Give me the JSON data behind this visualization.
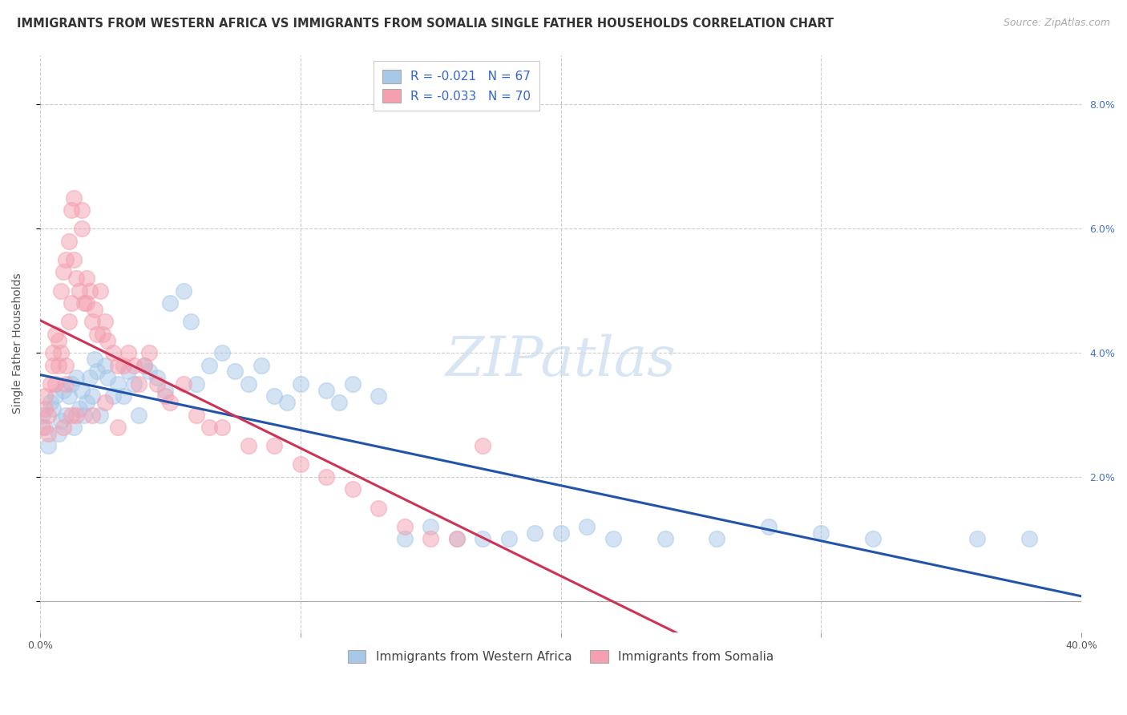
{
  "title": "IMMIGRANTS FROM WESTERN AFRICA VS IMMIGRANTS FROM SOMALIA SINGLE FATHER HOUSEHOLDS CORRELATION CHART",
  "source": "Source: ZipAtlas.com",
  "ylabel": "Single Father Households",
  "xlim": [
    0.0,
    0.4
  ],
  "ylim": [
    -0.005,
    0.088
  ],
  "yticks": [
    0.0,
    0.02,
    0.04,
    0.06,
    0.08
  ],
  "ytick_labels": [
    "",
    "2.0%",
    "4.0%",
    "6.0%",
    "8.0%"
  ],
  "xticks": [
    0.0,
    0.1,
    0.2,
    0.3,
    0.4
  ],
  "xtick_labels": [
    "0.0%",
    "",
    "",
    "",
    "40.0%"
  ],
  "legend_blue_r": "R = -0.021",
  "legend_blue_n": "N = 67",
  "legend_pink_r": "R = -0.033",
  "legend_pink_n": "N = 70",
  "legend_blue_label": "Immigrants from Western Africa",
  "legend_pink_label": "Immigrants from Somalia",
  "blue_color": "#a8c8e8",
  "pink_color": "#f4a0b0",
  "trend_color_blue": "#2255aa",
  "trend_color_pink": "#cc3355",
  "watermark": "ZIPatlas",
  "blue_x": [
    0.001,
    0.002,
    0.003,
    0.004,
    0.005,
    0.006,
    0.007,
    0.008,
    0.009,
    0.01,
    0.011,
    0.012,
    0.013,
    0.014,
    0.015,
    0.016,
    0.017,
    0.018,
    0.019,
    0.02,
    0.021,
    0.022,
    0.023,
    0.025,
    0.026,
    0.028,
    0.03,
    0.032,
    0.034,
    0.036,
    0.038,
    0.04,
    0.042,
    0.045,
    0.048,
    0.05,
    0.055,
    0.058,
    0.06,
    0.065,
    0.07,
    0.075,
    0.08,
    0.085,
    0.09,
    0.095,
    0.1,
    0.11,
    0.115,
    0.12,
    0.13,
    0.14,
    0.15,
    0.16,
    0.17,
    0.18,
    0.19,
    0.2,
    0.21,
    0.22,
    0.24,
    0.26,
    0.28,
    0.3,
    0.32,
    0.36,
    0.38
  ],
  "blue_y": [
    0.03,
    0.028,
    0.025,
    0.032,
    0.031,
    0.033,
    0.027,
    0.029,
    0.034,
    0.03,
    0.033,
    0.035,
    0.028,
    0.036,
    0.031,
    0.034,
    0.03,
    0.032,
    0.036,
    0.033,
    0.039,
    0.037,
    0.03,
    0.038,
    0.036,
    0.033,
    0.035,
    0.033,
    0.037,
    0.035,
    0.03,
    0.038,
    0.037,
    0.036,
    0.034,
    0.048,
    0.05,
    0.045,
    0.035,
    0.038,
    0.04,
    0.037,
    0.035,
    0.038,
    0.033,
    0.032,
    0.035,
    0.034,
    0.032,
    0.035,
    0.033,
    0.01,
    0.012,
    0.01,
    0.01,
    0.01,
    0.011,
    0.011,
    0.012,
    0.01,
    0.01,
    0.01,
    0.012,
    0.011,
    0.01,
    0.01,
    0.01
  ],
  "pink_x": [
    0.001,
    0.002,
    0.002,
    0.003,
    0.003,
    0.004,
    0.005,
    0.005,
    0.006,
    0.006,
    0.007,
    0.007,
    0.008,
    0.008,
    0.009,
    0.01,
    0.01,
    0.011,
    0.011,
    0.012,
    0.012,
    0.013,
    0.013,
    0.014,
    0.015,
    0.016,
    0.016,
    0.017,
    0.018,
    0.018,
    0.019,
    0.02,
    0.021,
    0.022,
    0.023,
    0.024,
    0.025,
    0.026,
    0.028,
    0.03,
    0.032,
    0.034,
    0.036,
    0.038,
    0.04,
    0.042,
    0.045,
    0.048,
    0.05,
    0.055,
    0.06,
    0.065,
    0.07,
    0.08,
    0.09,
    0.1,
    0.11,
    0.12,
    0.13,
    0.14,
    0.15,
    0.16,
    0.17,
    0.01,
    0.02,
    0.03,
    0.025,
    0.014,
    0.012,
    0.009
  ],
  "pink_y": [
    0.028,
    0.031,
    0.033,
    0.03,
    0.027,
    0.035,
    0.038,
    0.04,
    0.035,
    0.043,
    0.038,
    0.042,
    0.04,
    0.05,
    0.053,
    0.038,
    0.055,
    0.045,
    0.058,
    0.048,
    0.063,
    0.055,
    0.065,
    0.052,
    0.05,
    0.06,
    0.063,
    0.048,
    0.048,
    0.052,
    0.05,
    0.045,
    0.047,
    0.043,
    0.05,
    0.043,
    0.045,
    0.042,
    0.04,
    0.038,
    0.038,
    0.04,
    0.038,
    0.035,
    0.038,
    0.04,
    0.035,
    0.033,
    0.032,
    0.035,
    0.03,
    0.028,
    0.028,
    0.025,
    0.025,
    0.022,
    0.02,
    0.018,
    0.015,
    0.012,
    0.01,
    0.01,
    0.025,
    0.035,
    0.03,
    0.028,
    0.032,
    0.03,
    0.03,
    0.028
  ],
  "title_fontsize": 10.5,
  "source_fontsize": 9,
  "axis_label_fontsize": 10,
  "tick_fontsize": 9,
  "legend_fontsize": 11,
  "watermark_fontsize": 50,
  "background_color": "#ffffff",
  "grid_color": "#cccccc",
  "right_ytick_color": "#4472c4"
}
